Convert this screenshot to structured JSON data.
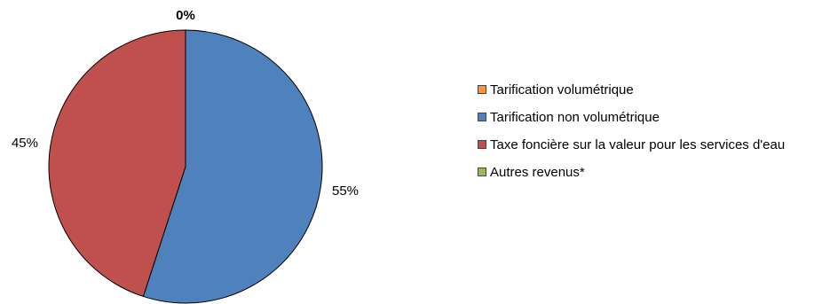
{
  "chart_data": {
    "type": "pie",
    "title": "",
    "start_angle_deg": 0,
    "direction": "clockwise",
    "slices": [
      {
        "name": "Tarification volumétrique",
        "value": 0,
        "label": "0%",
        "color": "#F79646"
      },
      {
        "name": "Tarification non volumétrique",
        "value": 55,
        "label": "55%",
        "color": "#4F81BD"
      },
      {
        "name": "Taxe foncière sur la valeur pour les services d'eau",
        "value": 45,
        "label": "45%",
        "color": "#C0504D"
      },
      {
        "name": "Autres revenus*",
        "value": 0,
        "label": "",
        "color": "#9BBB59"
      }
    ],
    "legend_position": "right"
  }
}
